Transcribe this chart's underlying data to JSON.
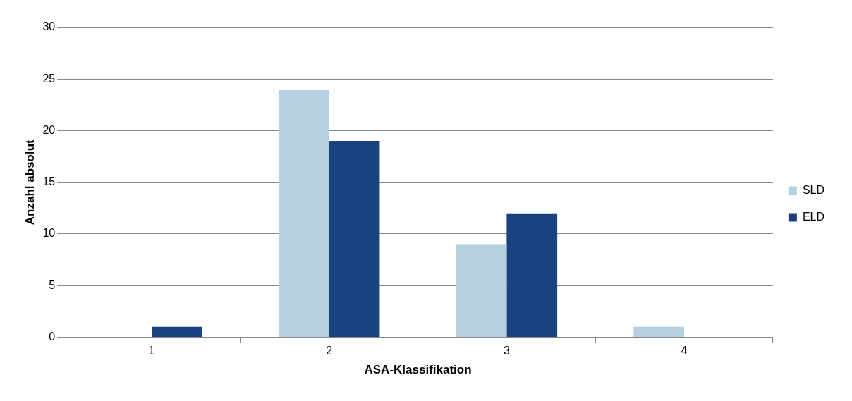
{
  "chart_data": {
    "type": "bar",
    "xlabel": "ASA-Klassifikation",
    "ylabel": "Anzahl absolut",
    "categories": [
      "1",
      "2",
      "3",
      "4"
    ],
    "series": [
      {
        "name": "SLD",
        "color": "#b4d0e1",
        "values": [
          0,
          24,
          9,
          1
        ]
      },
      {
        "name": "ELD",
        "color": "#1a427e",
        "values": [
          1,
          19,
          12,
          0
        ]
      }
    ],
    "ylim": [
      0,
      30
    ],
    "yticks": [
      0,
      5,
      10,
      15,
      20,
      25,
      30
    ],
    "grid": "y",
    "legend": "right"
  }
}
